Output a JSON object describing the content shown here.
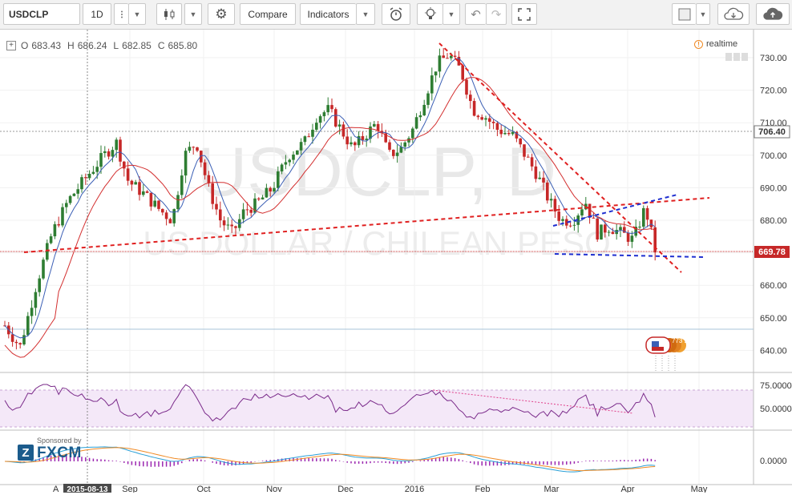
{
  "toolbar": {
    "symbol": "USDCLP",
    "interval": "1D",
    "compare_label": "Compare",
    "indicators_label": "Indicators"
  },
  "legend": {
    "open_key": "O",
    "open": "683.43",
    "high_key": "H",
    "high": "686.24",
    "low_key": "L",
    "low": "682.85",
    "close_key": "C",
    "close": "685.80"
  },
  "realtime_label": "realtime",
  "watermark": {
    "symbol": "USDCLP, D",
    "description": "US DOLLAR / CHILEAN PESO"
  },
  "price_axis": {
    "ticks": [
      "730.00",
      "720.00",
      "710.00",
      "700.00",
      "690.00",
      "680.00",
      "670.00",
      "660.00",
      "650.00",
      "640.00"
    ],
    "marker_high": "706.40",
    "marker_last": "669.78"
  },
  "rsi_axis": {
    "ticks": [
      "75.0000",
      "50.0000"
    ]
  },
  "macd_axis": {
    "ticks": [
      "0.0000"
    ]
  },
  "time_axis": {
    "labels": [
      "Sep",
      "Oct",
      "Nov",
      "Dec",
      "2016",
      "Feb",
      "Mar",
      "Apr",
      "May"
    ],
    "cursor_date": "2015-08-13",
    "partial_label": "A"
  },
  "event_badge": "773 2213",
  "sponsor": {
    "small_text": "Sponsored by",
    "logo_text": "FXCM"
  },
  "colors": {
    "up": "#2e7d32",
    "down": "#c62828",
    "sma_fast": "#3b5fb5",
    "sma_slow": "#d32f2f",
    "trend_red": "#e02020",
    "trend_blue": "#1f2fd0",
    "rsi_line": "#7a2a8a",
    "rsi_band": "#f3e6f7",
    "macd": "#2a9fd6",
    "signal": "#f08a24",
    "hist": "#9c27b0"
  },
  "icons": [
    "candles-icon",
    "gear-icon",
    "alarm-icon",
    "bulb-icon",
    "undo-icon",
    "redo-icon",
    "fullscreen-icon",
    "square-icon",
    "cloud-download-icon",
    "cloud-upload-icon"
  ]
}
